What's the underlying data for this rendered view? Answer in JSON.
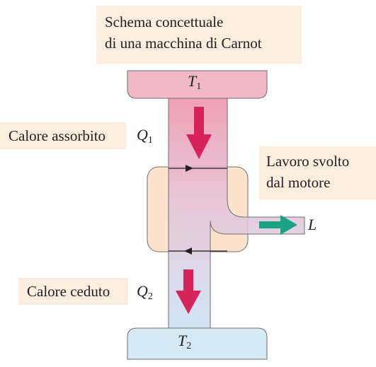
{
  "title": {
    "line1": "Schema concettuale",
    "line2": "di una macchina di Carnot"
  },
  "labels": {
    "heat_absorbed": "Calore assorbito",
    "work_line1": "Lavoro svolto",
    "work_line2": "dal motore",
    "heat_released": "Calore ceduto"
  },
  "symbols": {
    "t1_letter": "T",
    "t1_index": "1",
    "t2_letter": "T",
    "t2_index": "2",
    "q1_letter": "Q",
    "q1_index": "1",
    "q2_letter": "Q",
    "q2_index": "2",
    "work": "L"
  },
  "colors": {
    "hot_reservoir": "#f1b8c8",
    "cold_reservoir": "#d4e9f4",
    "engine": "#fde3cc",
    "heat_arrow": "#d6235c",
    "work_arrow": "#1aa283",
    "label_background": "#fbeede"
  }
}
